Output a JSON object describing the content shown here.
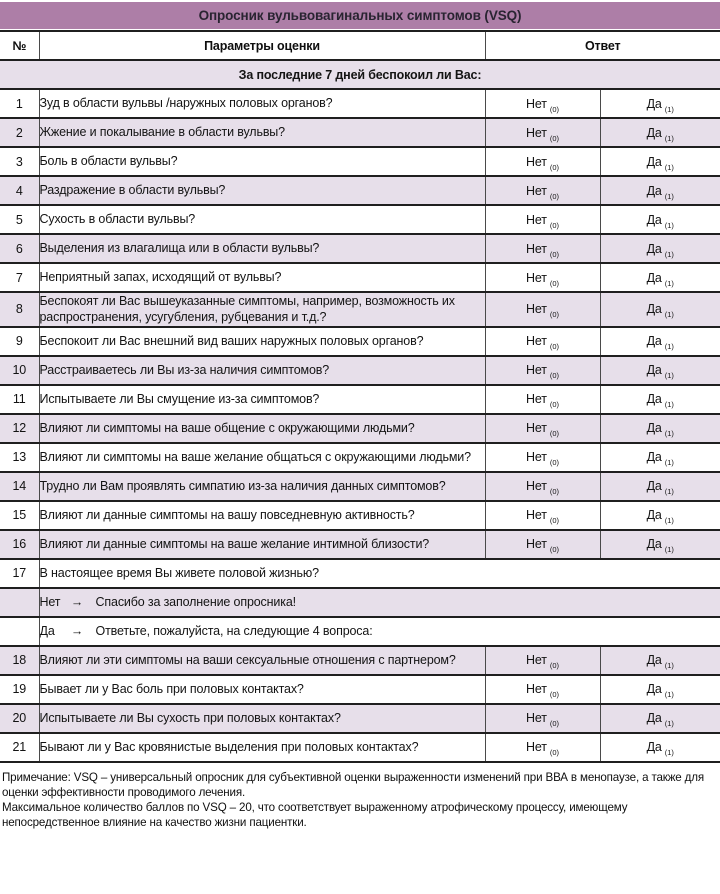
{
  "title": "Опросник вульвовагинальных симптомов (VSQ)",
  "columns": {
    "num": "№",
    "params": "Параметры оценки",
    "answer": "Ответ"
  },
  "section_header": "За последние 7 дней беспокоил ли Вас:",
  "answers": {
    "no": "Нет",
    "no_score": "(0)",
    "yes": "Да",
    "yes_score": "(1)"
  },
  "rows": [
    {
      "num": "1",
      "question": "Зуд в области вульвы /наружных половых органов?"
    },
    {
      "num": "2",
      "question": "Жжение и покалывание в области вульвы?"
    },
    {
      "num": "3",
      "question": "Боль в области вульвы?"
    },
    {
      "num": "4",
      "question": "Раздражение в области вульвы?"
    },
    {
      "num": "5",
      "question": "Сухость в области вульвы?"
    },
    {
      "num": "6",
      "question": "Выделения из влагалища или в области вульвы?"
    },
    {
      "num": "7",
      "question": "Неприятный запах, исходящий от вульвы?"
    },
    {
      "num": "8",
      "question": "Беспокоят ли Вас вышеуказанные симптомы, например, возможность их распространения, усугубления, рубцевания и т.д.?"
    },
    {
      "num": "9",
      "question": "Беспокоит ли Вас внешний вид ваших наружных половых органов?"
    },
    {
      "num": "10",
      "question": "Расстраиваетесь ли Вы из-за наличия симптомов?"
    },
    {
      "num": "11",
      "question": "Испытываете ли Вы смущение из-за симптомов?"
    },
    {
      "num": "12",
      "question": "Влияют ли симптомы на ваше общение с окружающими людьми?"
    },
    {
      "num": "13",
      "question": "Влияют ли симптомы на ваше желание общаться с окружающими людьми?"
    },
    {
      "num": "14",
      "question": "Трудно ли Вам проявлять симпатию из-за наличия данных симптомов?"
    },
    {
      "num": "15",
      "question": "Влияют ли данные симптомы на вашу повседневную активность?"
    },
    {
      "num": "16",
      "question": "Влияют ли данные симптомы на ваше желание интимной близости?"
    },
    {
      "num": "17",
      "question": "В настоящее время Вы живете половой жизнью?"
    },
    {
      "label": "Нет",
      "arrow": "→",
      "text": "Спасибо за заполнение опросника!"
    },
    {
      "label": "Да",
      "arrow": "→",
      "text": "Ответьте, пожалуйста, на следующие 4 вопроса:"
    },
    {
      "num": "18",
      "question": "Влияют ли эти симптомы на ваши сексуальные отношения с партнером?"
    },
    {
      "num": "19",
      "question": "Бывает ли у Вас боль при половых контактах?"
    },
    {
      "num": "20",
      "question": "Испытываете ли Вы сухость при половых контактах?"
    },
    {
      "num": "21",
      "question": "Бывают ли у Вас кровянистые выделения при половых контактах?"
    }
  ],
  "note": {
    "p1": "Примечание: VSQ – универсальный опросник для субъективной оценки выраженности изменений при ВВА в менопаузе, а также для оценки эффективности проводимого лечения.",
    "p2": "Максимальное количество баллов по VSQ – 20, что соответствует выраженному атрофическому процессу, имеющему непосредственное влияние на качество жизни пациентки."
  },
  "colors": {
    "header_bg": "#ad7ea7",
    "row_alt_bg": "#e7dfea",
    "rule_dark": "#1f1f1f"
  }
}
